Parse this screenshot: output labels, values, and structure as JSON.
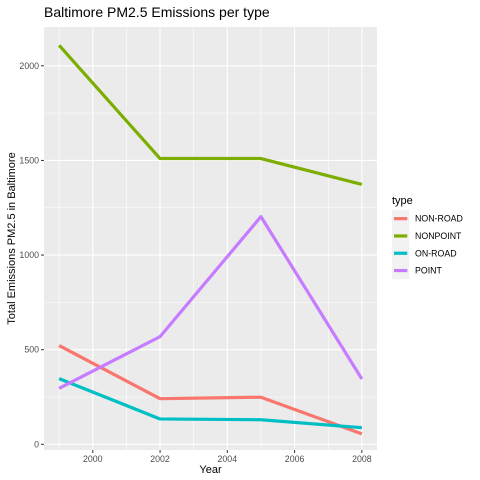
{
  "chart_data": {
    "type": "line",
    "title": "Baltimore PM2.5 Emissions per type",
    "xlabel": "Year",
    "ylabel": "Total Emissions PM2.5 in Baltimore",
    "x": [
      1999,
      2002,
      2005,
      2008
    ],
    "xticks": [
      2000,
      2002,
      2004,
      2006,
      2008
    ],
    "xtick_labels": [
      "2000",
      "2002",
      "2004",
      "2006",
      "2008"
    ],
    "yticks": [
      0,
      500,
      1000,
      1500,
      2000
    ],
    "ytick_labels": [
      "0",
      "500",
      "1000",
      "1500",
      "2000"
    ],
    "xlim": [
      1998.55,
      2008.45
    ],
    "ylim": [
      -30,
      2205
    ],
    "grid": true,
    "legend": {
      "title": "type",
      "placement": "right"
    },
    "series": [
      {
        "name": "NON-ROAD",
        "color": "#F8766D",
        "values": [
          522,
          241,
          249,
          55
        ]
      },
      {
        "name": "NONPOINT",
        "color": "#7CAE00",
        "values": [
          2108,
          1510,
          1510,
          1373
        ]
      },
      {
        "name": "ON-ROAD",
        "color": "#00BFC4",
        "values": [
          347,
          134,
          130,
          88
        ]
      },
      {
        "name": "POINT",
        "color": "#C77CFF",
        "values": [
          296,
          569,
          1203,
          345
        ]
      }
    ]
  }
}
